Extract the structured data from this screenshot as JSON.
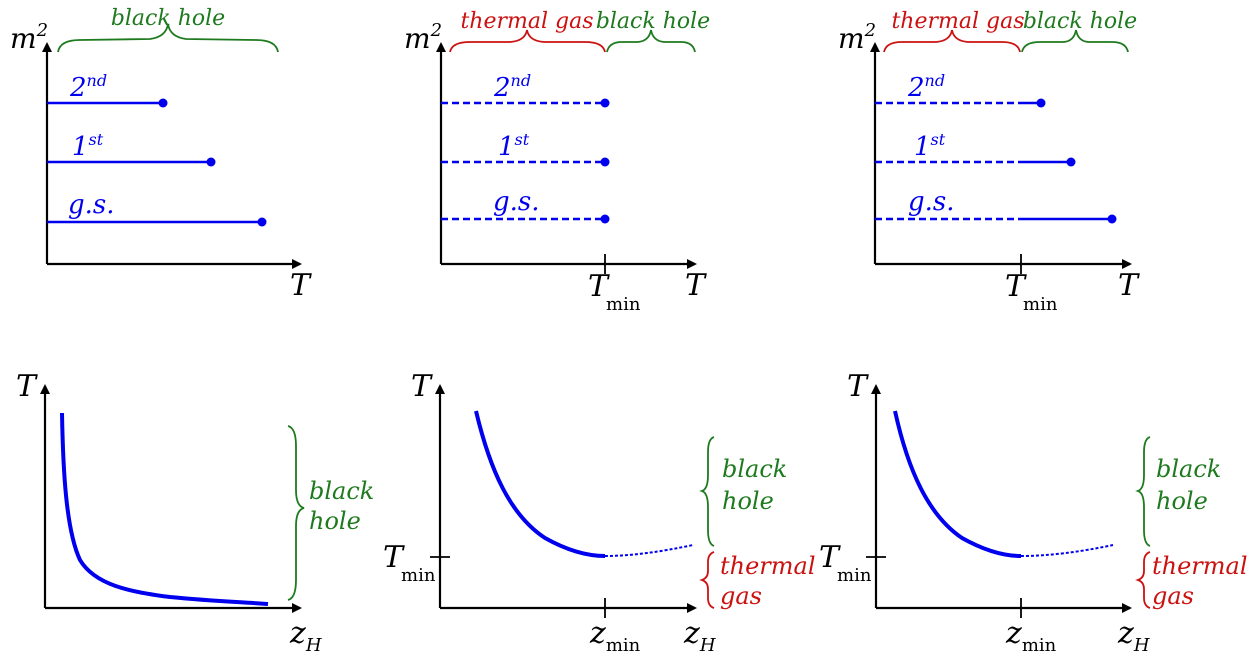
{
  "colors": {
    "black_hole": "#1e7a1e",
    "thermal_gas": "#cc1111",
    "curves": "#0000ee",
    "axes": "#000000"
  },
  "labels": {
    "black_hole": "black hole",
    "black": "black",
    "hole": "hole",
    "thermal_gas": "thermal gas",
    "thermal": "thermal",
    "gas": "gas",
    "m": "m",
    "sq": "2",
    "T": "T",
    "z": "z",
    "H": "H",
    "min": "min",
    "state2": "2",
    "state2_sup": "nd",
    "state1": "1",
    "state1_sup": "st",
    "gs": "g.s."
  },
  "panels": {
    "top": [
      {
        "phase_braces": [
          "black hole"
        ],
        "levels": [
          "2nd",
          "1st",
          "g.s."
        ],
        "style": "solid lines ending in dots",
        "has_Tmin_tick": false
      },
      {
        "phase_braces": [
          "thermal gas",
          "black hole"
        ],
        "levels": [
          "2nd",
          "1st",
          "g.s."
        ],
        "style": "dashed lines ending at T_min",
        "has_Tmin_tick": true
      },
      {
        "phase_braces": [
          "thermal gas",
          "black hole"
        ],
        "levels": [
          "2nd",
          "1st",
          "g.s."
        ],
        "style": "dashed below T_min, solid above",
        "has_Tmin_tick": true
      }
    ],
    "bottom": [
      {
        "curve": "monotonically decreasing",
        "side_braces": [
          "black hole"
        ],
        "has_Tmin_tick": false
      },
      {
        "curve": "minimum at z_min",
        "side_braces": [
          "black hole",
          "thermal gas"
        ],
        "has_Tmin_tick": true
      },
      {
        "curve": "minimum at z_min",
        "side_braces": [
          "black hole",
          "thermal gas"
        ],
        "has_Tmin_tick": true
      }
    ]
  }
}
